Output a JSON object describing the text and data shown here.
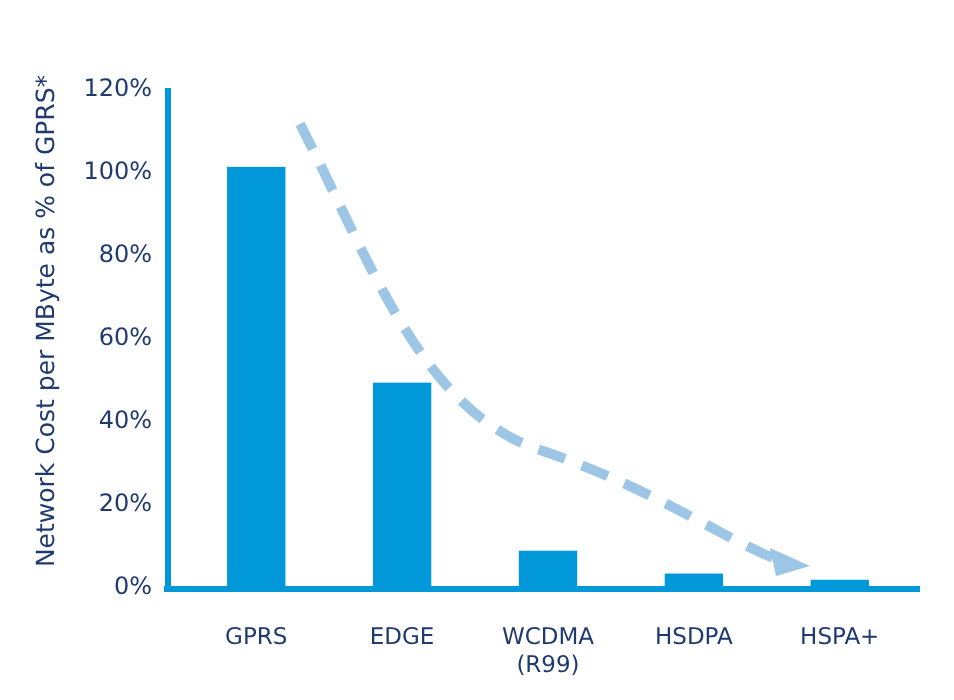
{
  "chart_data": {
    "type": "bar",
    "ylabel": "Network Cost per MByte as % of GPRS*",
    "categories": [
      "GPRS",
      "EDGE",
      "WCDMA\n(R99)",
      "HSDPA",
      "HSPA+"
    ],
    "values": [
      101,
      49,
      8.5,
      3,
      1.5
    ],
    "color": "#0098d8",
    "ylim": [
      0,
      120
    ],
    "yticks": [
      {
        "value": 0,
        "label": "0%"
      },
      {
        "value": 20,
        "label": "20%"
      },
      {
        "value": 40,
        "label": "40%"
      },
      {
        "value": 60,
        "label": "60%"
      },
      {
        "value": 80,
        "label": "80%"
      },
      {
        "value": 100,
        "label": "100%"
      },
      {
        "value": 120,
        "label": "120%"
      }
    ],
    "grid": false
  }
}
